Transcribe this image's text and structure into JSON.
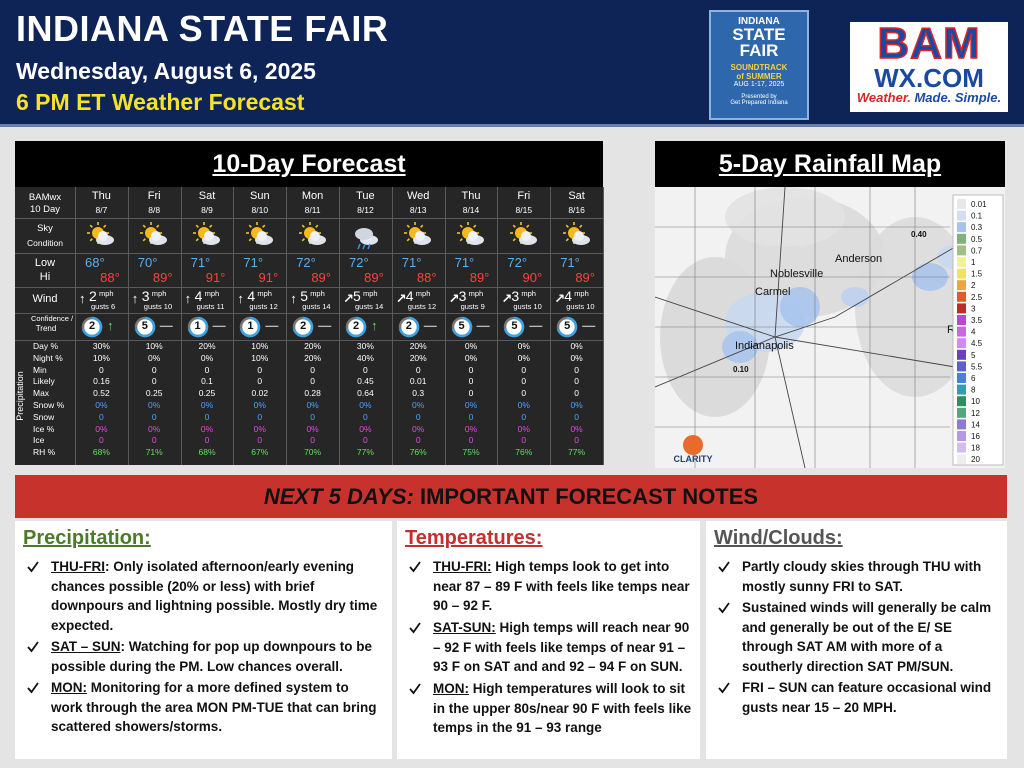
{
  "header": {
    "title": "INDIANA STATE FAIR",
    "date": "Wednesday, August 6, 2025",
    "subtitle": "6 PM ET Weather Forecast"
  },
  "fair_logo": {
    "line1": "INDIANA",
    "line2": "STATE",
    "line3": "FAIR",
    "tagline_1": "SOUNDTRACK",
    "tagline_2": "of SUMMER",
    "dates": "AUG 1-17, 2025",
    "presented": "Presented by",
    "sponsor": "Get Prepared Indiana"
  },
  "bam_logo": {
    "name": "BAM",
    "site": "WX.COM",
    "slogan_1": "Weather.",
    "slogan_2": "Made. Simple."
  },
  "forecast": {
    "title": "10-Day Forecast",
    "corner": [
      "BAMwx",
      "10 Day"
    ],
    "row_labels": {
      "sky": [
        "Sky",
        "Condition"
      ],
      "low": "Low",
      "hi": "Hi",
      "wind": "Wind",
      "confidence": [
        "Confidence /",
        "Trend"
      ],
      "precip": [
        "Day %",
        "Night %",
        "Min",
        "Likely",
        "Max",
        "Snow %",
        "Snow",
        "Ice %",
        "Ice",
        "RH %"
      ]
    },
    "precip_label": "Precipitation",
    "wind_unit": "mph",
    "days": [
      {
        "name": "Thu",
        "date": "8/7",
        "low": "68°",
        "hi": "88°",
        "wind_dir": "↑",
        "wind_speed": "2",
        "gusts": "gusts 6",
        "confidence": "2",
        "trend": "↑",
        "precip": [
          "30%",
          "10%",
          "0",
          "0.16",
          "0.52",
          "0%",
          "0",
          "0%",
          "0",
          "68%"
        ]
      },
      {
        "name": "Fri",
        "date": "8/8",
        "low": "70°",
        "hi": "89°",
        "wind_dir": "↑",
        "wind_speed": "3",
        "gusts": "gusts 10",
        "confidence": "5",
        "trend": "—",
        "precip": [
          "10%",
          "0%",
          "0",
          "0",
          "0.25",
          "0%",
          "0",
          "0%",
          "0",
          "71%"
        ]
      },
      {
        "name": "Sat",
        "date": "8/9",
        "low": "71°",
        "hi": "91°",
        "wind_dir": "↑",
        "wind_speed": "4",
        "gusts": "gusts 11",
        "confidence": "1",
        "trend": "—",
        "precip": [
          "20%",
          "0%",
          "0",
          "0.1",
          "0.25",
          "0%",
          "0",
          "0%",
          "0",
          "68%"
        ]
      },
      {
        "name": "Sun",
        "date": "8/10",
        "low": "71°",
        "hi": "91°",
        "wind_dir": "↑",
        "wind_speed": "4",
        "gusts": "gusts 12",
        "confidence": "1",
        "trend": "—",
        "precip": [
          "10%",
          "10%",
          "0",
          "0",
          "0.02",
          "0%",
          "0",
          "0%",
          "0",
          "67%"
        ]
      },
      {
        "name": "Mon",
        "date": "8/11",
        "low": "72°",
        "hi": "89°",
        "wind_dir": "↑",
        "wind_speed": "5",
        "gusts": "gusts 14",
        "confidence": "2",
        "trend": "—",
        "precip": [
          "20%",
          "20%",
          "0",
          "0",
          "0.28",
          "0%",
          "0",
          "0%",
          "0",
          "70%"
        ]
      },
      {
        "name": "Tue",
        "date": "8/12",
        "low": "72°",
        "hi": "89°",
        "wind_dir": "↗",
        "wind_speed": "5",
        "gusts": "gusts 14",
        "confidence": "2",
        "trend": "↑",
        "precip": [
          "30%",
          "40%",
          "0",
          "0.45",
          "0.64",
          "0%",
          "0",
          "0%",
          "0",
          "77%"
        ]
      },
      {
        "name": "Wed",
        "date": "8/13",
        "low": "71°",
        "hi": "88°",
        "wind_dir": "↗",
        "wind_speed": "4",
        "gusts": "gusts 12",
        "confidence": "2",
        "trend": "—",
        "precip": [
          "20%",
          "20%",
          "0",
          "0.01",
          "0.3",
          "0%",
          "0",
          "0%",
          "0",
          "76%"
        ]
      },
      {
        "name": "Thu",
        "date": "8/14",
        "low": "71°",
        "hi": "89°",
        "wind_dir": "↗",
        "wind_speed": "3",
        "gusts": "gusts 9",
        "confidence": "5",
        "trend": "—",
        "precip": [
          "0%",
          "0%",
          "0",
          "0",
          "0",
          "0%",
          "0",
          "0%",
          "0",
          "75%"
        ]
      },
      {
        "name": "Fri",
        "date": "8/15",
        "low": "72°",
        "hi": "90°",
        "wind_dir": "↗",
        "wind_speed": "3",
        "gusts": "gusts 10",
        "confidence": "5",
        "trend": "—",
        "precip": [
          "0%",
          "0%",
          "0",
          "0",
          "0",
          "0%",
          "0",
          "0%",
          "0",
          "76%"
        ]
      },
      {
        "name": "Sat",
        "date": "8/16",
        "low": "71°",
        "hi": "89°",
        "wind_dir": "↗",
        "wind_speed": "4",
        "gusts": "gusts 10",
        "confidence": "5",
        "trend": "—",
        "precip": [
          "0%",
          "0%",
          "0",
          "0",
          "0",
          "0%",
          "0",
          "0%",
          "0",
          "77%"
        ]
      }
    ]
  },
  "rain_map": {
    "title": "5-Day Rainfall Map",
    "cities": [
      "Noblesville",
      "Anderson",
      "Carmel",
      "Indianapolis",
      "Ric"
    ],
    "amounts": [
      "0.40",
      "0.10"
    ],
    "credit": "CLARITY",
    "legend": [
      "0.01",
      "0.1",
      "0.3",
      "0.5",
      "0.7",
      "1",
      "1.5",
      "2",
      "2.5",
      "3",
      "3.5",
      "4",
      "4.5",
      "5",
      "5.5",
      "6",
      "8",
      "10",
      "12",
      "14",
      "16",
      "18",
      "20"
    ]
  },
  "banner": {
    "lead": "NEXT 5 DAYS:",
    "text": "IMPORTANT FORECAST NOTES"
  },
  "notes": [
    {
      "heading": "Precipitation:",
      "items": [
        {
          "lead": "THU-FRI",
          "text": ": Only isolated afternoon/early evening chances possible (20% or less) with brief downpours and lightning possible.  Mostly dry time expected."
        },
        {
          "lead": "SAT – SUN",
          "text": ": Watching for pop up downpours to be possible during the PM. Low chances overall."
        },
        {
          "lead": "MON:",
          "text": " Monitoring for a more defined system to work through the area MON PM-TUE that can bring scattered showers/storms."
        }
      ]
    },
    {
      "heading": "Temperatures:",
      "items": [
        {
          "lead": "THU-FRI:",
          "text": " High temps look to get into near 87 – 89 F with feels like temps near 90 – 92 F."
        },
        {
          "lead": "SAT-SUN:",
          "text": " High temps will reach near 90 – 92 F with feels like temps of near 91 – 93 F on SAT and and 92 – 94 F on SUN."
        },
        {
          "lead": "MON:",
          "text": " High temperatures will look to sit in the upper 80s/near 90 F with feels like temps in the 91 – 93 range"
        }
      ]
    },
    {
      "heading": "Wind/Clouds:",
      "items": [
        {
          "text": "Partly cloudy skies through THU with mostly sunny FRI to SAT."
        },
        {
          "text": "Sustained winds will generally be calm and generally be out of the E/ SE through SAT AM with more of a southerly direction SAT PM/SUN."
        },
        {
          "text": "FRI – SUN can feature occasional wind gusts near 15 – 20 MPH."
        }
      ]
    }
  ]
}
